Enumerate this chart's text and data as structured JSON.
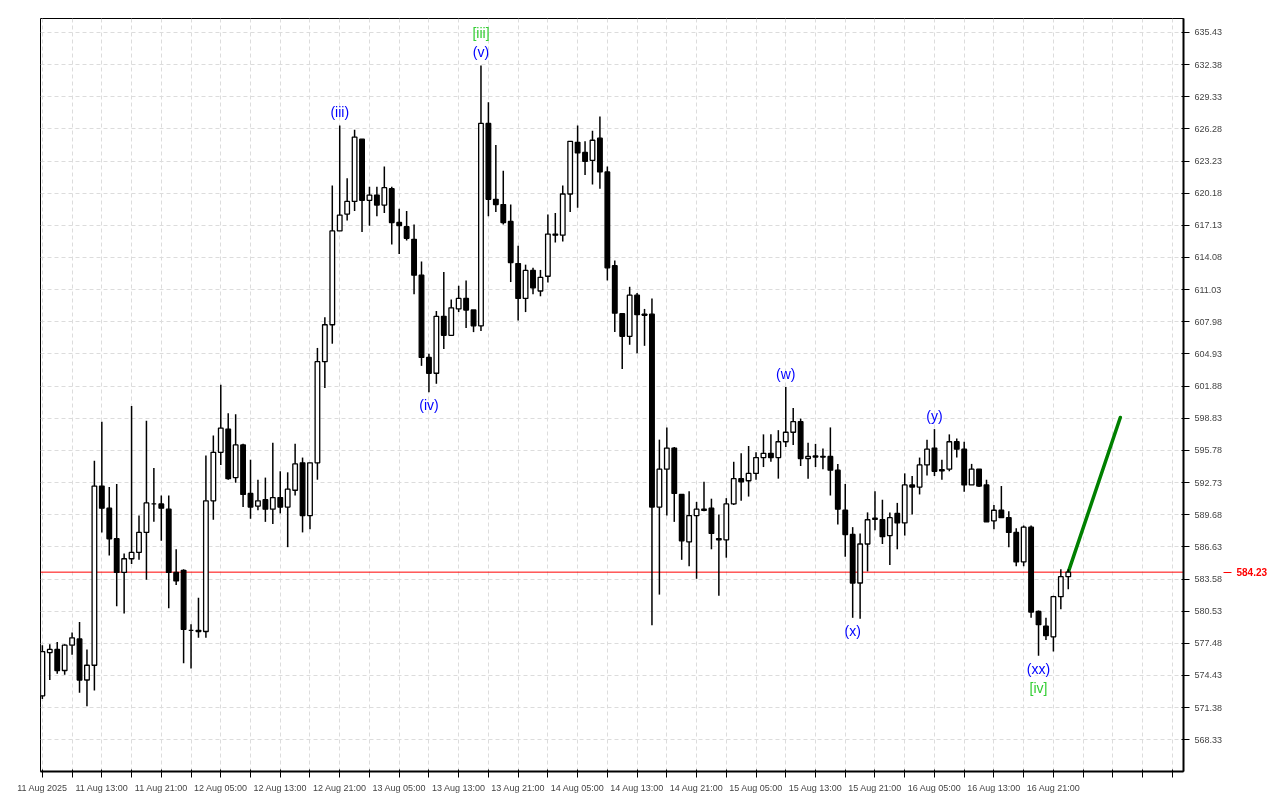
{
  "chart_data": {
    "type": "candlestick",
    "x": [
      "2025-08-11T05:00",
      "2025-08-11T06:00",
      "2025-08-11T07:00",
      "2025-08-11T08:00",
      "2025-08-11T09:00",
      "2025-08-11T10:00",
      "2025-08-11T11:00",
      "2025-08-11T12:00",
      "2025-08-11T13:00",
      "2025-08-11T14:00",
      "2025-08-11T15:00",
      "2025-08-11T16:00",
      "2025-08-11T17:00",
      "2025-08-11T18:00",
      "2025-08-11T19:00",
      "2025-08-11T20:00",
      "2025-08-11T21:00",
      "2025-08-11T22:00",
      "2025-08-11T23:00",
      "2025-08-12T00:00",
      "2025-08-12T01:00",
      "2025-08-12T02:00",
      "2025-08-12T03:00",
      "2025-08-12T04:00",
      "2025-08-12T05:00",
      "2025-08-12T06:00",
      "2025-08-12T07:00",
      "2025-08-12T08:00",
      "2025-08-12T09:00",
      "2025-08-12T10:00",
      "2025-08-12T11:00",
      "2025-08-12T12:00",
      "2025-08-12T13:00",
      "2025-08-12T14:00",
      "2025-08-12T15:00",
      "2025-08-12T16:00",
      "2025-08-12T17:00",
      "2025-08-12T18:00",
      "2025-08-12T19:00",
      "2025-08-12T20:00",
      "2025-08-12T21:00",
      "2025-08-12T22:00",
      "2025-08-12T23:00",
      "2025-08-13T00:00",
      "2025-08-13T01:00",
      "2025-08-13T02:00",
      "2025-08-13T03:00",
      "2025-08-13T04:00",
      "2025-08-13T05:00",
      "2025-08-13T06:00",
      "2025-08-13T07:00",
      "2025-08-13T08:00",
      "2025-08-13T09:00",
      "2025-08-13T10:00",
      "2025-08-13T11:00",
      "2025-08-13T12:00",
      "2025-08-13T13:00",
      "2025-08-13T14:00",
      "2025-08-13T15:00",
      "2025-08-13T16:00",
      "2025-08-13T17:00",
      "2025-08-13T18:00",
      "2025-08-13T19:00",
      "2025-08-13T20:00",
      "2025-08-13T21:00",
      "2025-08-13T22:00",
      "2025-08-13T23:00",
      "2025-08-14T00:00",
      "2025-08-14T01:00",
      "2025-08-14T02:00",
      "2025-08-14T03:00",
      "2025-08-14T04:00",
      "2025-08-14T05:00",
      "2025-08-14T06:00",
      "2025-08-14T07:00",
      "2025-08-14T08:00",
      "2025-08-14T09:00",
      "2025-08-14T10:00",
      "2025-08-14T11:00",
      "2025-08-14T12:00",
      "2025-08-14T13:00",
      "2025-08-14T14:00",
      "2025-08-14T15:00",
      "2025-08-14T16:00",
      "2025-08-14T17:00",
      "2025-08-14T18:00",
      "2025-08-14T19:00",
      "2025-08-14T20:00",
      "2025-08-14T21:00",
      "2025-08-14T22:00",
      "2025-08-14T23:00",
      "2025-08-15T00:00",
      "2025-08-15T01:00",
      "2025-08-15T02:00",
      "2025-08-15T03:00",
      "2025-08-15T04:00",
      "2025-08-15T05:00",
      "2025-08-15T06:00",
      "2025-08-15T07:00",
      "2025-08-15T08:00",
      "2025-08-15T09:00",
      "2025-08-15T10:00",
      "2025-08-15T11:00",
      "2025-08-15T12:00",
      "2025-08-15T13:00",
      "2025-08-15T14:00",
      "2025-08-15T15:00",
      "2025-08-15T16:00",
      "2025-08-15T17:00",
      "2025-08-15T18:00",
      "2025-08-15T19:00",
      "2025-08-15T20:00",
      "2025-08-15T21:00",
      "2025-08-15T22:00",
      "2025-08-15T23:00",
      "2025-08-16T00:00",
      "2025-08-16T01:00",
      "2025-08-16T02:00",
      "2025-08-16T03:00",
      "2025-08-16T04:00",
      "2025-08-16T05:00",
      "2025-08-16T06:00",
      "2025-08-16T07:00",
      "2025-08-16T08:00",
      "2025-08-16T09:00",
      "2025-08-16T10:00",
      "2025-08-16T11:00",
      "2025-08-16T12:00",
      "2025-08-16T13:00",
      "2025-08-16T14:00",
      "2025-08-16T15:00",
      "2025-08-16T16:00",
      "2025-08-16T17:00",
      "2025-08-16T18:00",
      "2025-08-16T19:00",
      "2025-08-16T20:00",
      "2025-08-16T21:00",
      "2025-08-16T22:00",
      "2025-08-16T23:00"
    ],
    "ohlc": [
      [
        572.5,
        577.3,
        572.2,
        576.7
      ],
      [
        576.6,
        577.4,
        574.0,
        576.9
      ],
      [
        576.9,
        577.6,
        574.6,
        574.9
      ],
      [
        574.9,
        577.4,
        574.5,
        577.3
      ],
      [
        577.3,
        578.5,
        576.4,
        578.0
      ],
      [
        577.9,
        579.5,
        572.8,
        574.0
      ],
      [
        574.0,
        576.9,
        571.5,
        575.4
      ],
      [
        575.4,
        594.8,
        573.0,
        592.4
      ],
      [
        592.4,
        598.5,
        588.0,
        590.3
      ],
      [
        590.3,
        592.3,
        585.8,
        587.4
      ],
      [
        587.4,
        592.6,
        581.0,
        584.2
      ],
      [
        584.2,
        586.0,
        580.3,
        585.5
      ],
      [
        585.5,
        600.0,
        585.0,
        586.1
      ],
      [
        586.1,
        589.6,
        585.4,
        588.0
      ],
      [
        588.0,
        598.6,
        583.5,
        590.8
      ],
      [
        590.7,
        594.1,
        589.0,
        590.7
      ],
      [
        590.7,
        591.5,
        587.2,
        590.3
      ],
      [
        590.2,
        591.5,
        580.8,
        584.2
      ],
      [
        584.2,
        586.4,
        583.0,
        583.4
      ],
      [
        584.4,
        584.5,
        575.6,
        578.8
      ],
      [
        578.7,
        579.3,
        575.1,
        578.7
      ],
      [
        578.7,
        581.8,
        578.0,
        578.6
      ],
      [
        578.6,
        595.3,
        578.0,
        591.0
      ],
      [
        591.0,
        597.2,
        589.2,
        595.6
      ],
      [
        595.6,
        602.0,
        594.4,
        597.9
      ],
      [
        597.8,
        599.3,
        593.0,
        593.1
      ],
      [
        593.2,
        599.2,
        592.7,
        596.3
      ],
      [
        596.3,
        596.4,
        590.4,
        591.6
      ],
      [
        591.7,
        594.9,
        589.3,
        590.4
      ],
      [
        590.5,
        593.0,
        590.1,
        591.0
      ],
      [
        591.1,
        593.2,
        589.0,
        590.2
      ],
      [
        590.2,
        596.5,
        588.8,
        591.3
      ],
      [
        591.3,
        593.8,
        589.8,
        590.4
      ],
      [
        590.4,
        593.7,
        586.6,
        592.1
      ],
      [
        592.0,
        596.4,
        591.5,
        594.5
      ],
      [
        594.6,
        595.1,
        588.0,
        589.6
      ],
      [
        589.6,
        594.6,
        588.3,
        594.6
      ],
      [
        594.6,
        605.5,
        593.0,
        604.2
      ],
      [
        604.2,
        608.4,
        601.7,
        607.7
      ],
      [
        607.7,
        620.9,
        605.9,
        616.6
      ],
      [
        616.6,
        626.6,
        616.6,
        618.1
      ],
      [
        618.2,
        621.6,
        617.6,
        619.4
      ],
      [
        619.4,
        626.2,
        618.5,
        625.5
      ],
      [
        625.3,
        625.3,
        616.5,
        619.5
      ],
      [
        619.5,
        620.8,
        617.1,
        620.0
      ],
      [
        620.0,
        620.8,
        618.0,
        619.05
      ],
      [
        619.05,
        622.7,
        618.3,
        620.7
      ],
      [
        620.6,
        620.8,
        615.3,
        617.4
      ],
      [
        617.4,
        618.7,
        614.4,
        617.1
      ],
      [
        617.0,
        618.5,
        615.7,
        615.9
      ],
      [
        615.8,
        617.2,
        610.6,
        612.4
      ],
      [
        612.4,
        613.7,
        603.8,
        604.6
      ],
      [
        604.6,
        604.95,
        601.3,
        603.1
      ],
      [
        603.1,
        609.0,
        602.1,
        608.5
      ],
      [
        608.5,
        612.7,
        605.4,
        606.7
      ],
      [
        606.7,
        610.1,
        606.7,
        609.3
      ],
      [
        609.2,
        611.4,
        608.9,
        610.2
      ],
      [
        610.2,
        611.9,
        607.4,
        609.1
      ],
      [
        609.1,
        609.1,
        607.0,
        607.6
      ],
      [
        607.6,
        632.3,
        607.1,
        626.8
      ],
      [
        626.8,
        628.8,
        618.0,
        619.6
      ],
      [
        619.6,
        624.75,
        618.4,
        619.1
      ],
      [
        619.1,
        622.3,
        617.2,
        617.4
      ],
      [
        617.5,
        619.1,
        611.75,
        613.6
      ],
      [
        613.5,
        615.2,
        608.1,
        610.2
      ],
      [
        610.2,
        613.4,
        608.9,
        612.85
      ],
      [
        612.85,
        613.1,
        610.6,
        611.2
      ],
      [
        610.9,
        612.9,
        610.4,
        612.2
      ],
      [
        612.3,
        618.15,
        611.7,
        616.3
      ],
      [
        616.3,
        618.3,
        615.5,
        616.2
      ],
      [
        616.2,
        620.9,
        615.6,
        620.1
      ],
      [
        620.1,
        625.1,
        618.4,
        625.1
      ],
      [
        625.0,
        626.6,
        618.8,
        624.0
      ],
      [
        624.05,
        625.1,
        621.9,
        623.2
      ],
      [
        623.3,
        626.1,
        621.0,
        625.2
      ],
      [
        625.4,
        627.45,
        620.6,
        622.2
      ],
      [
        622.2,
        622.7,
        611.9,
        613.1
      ],
      [
        613.3,
        613.8,
        607.0,
        608.8
      ],
      [
        608.75,
        608.75,
        603.5,
        606.6
      ],
      [
        606.6,
        611.3,
        605.8,
        610.5
      ],
      [
        610.5,
        610.7,
        605.0,
        608.65
      ],
      [
        608.7,
        609.2,
        605.7,
        608.6
      ],
      [
        608.7,
        610.2,
        579.2,
        590.4
      ],
      [
        590.4,
        596.8,
        582.1,
        594.0
      ],
      [
        594.0,
        597.96,
        589.6,
        596.0
      ],
      [
        596.0,
        596.1,
        589.0,
        591.7
      ],
      [
        591.6,
        591.6,
        585.4,
        587.2
      ],
      [
        587.1,
        591.9,
        584.8,
        589.6
      ],
      [
        589.6,
        590.9,
        583.6,
        590.2
      ],
      [
        590.2,
        592.8,
        590.0,
        590.1
      ],
      [
        590.3,
        591.2,
        586.4,
        587.9
      ],
      [
        587.4,
        589.7,
        582.0,
        587.3
      ],
      [
        587.3,
        591.25,
        585.6,
        590.7
      ],
      [
        590.7,
        594.7,
        590.6,
        593.1
      ],
      [
        593.1,
        595.5,
        591.0,
        592.8
      ],
      [
        592.9,
        596.2,
        591.4,
        593.6
      ],
      [
        593.6,
        595.6,
        593.0,
        595.1
      ],
      [
        595.1,
        597.3,
        594.2,
        595.5
      ],
      [
        595.5,
        597.3,
        594.7,
        595.1
      ],
      [
        595.1,
        597.7,
        593.1,
        596.6
      ],
      [
        596.6,
        601.8,
        596.1,
        597.5
      ],
      [
        597.5,
        599.8,
        596.3,
        598.5
      ],
      [
        598.5,
        598.8,
        594.3,
        595.0
      ],
      [
        595.0,
        596.5,
        593.1,
        595.2
      ],
      [
        595.25,
        596.4,
        594.2,
        595.15
      ],
      [
        595.2,
        595.95,
        594.0,
        595.15
      ],
      [
        595.2,
        597.96,
        591.5,
        593.9
      ],
      [
        593.9,
        594.5,
        588.75,
        590.2
      ],
      [
        590.1,
        592.6,
        585.7,
        587.8
      ],
      [
        587.8,
        588.5,
        579.9,
        583.2
      ],
      [
        583.2,
        587.9,
        579.8,
        586.9
      ],
      [
        586.9,
        589.9,
        584.3,
        589.2
      ],
      [
        589.35,
        591.9,
        588.2,
        589.25
      ],
      [
        589.2,
        591.1,
        586.9,
        587.6
      ],
      [
        587.7,
        589.9,
        584.9,
        589.4
      ],
      [
        589.8,
        590.8,
        586.4,
        588.9
      ],
      [
        588.9,
        593.6,
        587.7,
        592.5
      ],
      [
        592.5,
        593.35,
        589.7,
        592.3
      ],
      [
        592.3,
        595.1,
        591.6,
        594.4
      ],
      [
        594.4,
        596.8,
        593.4,
        595.9
      ],
      [
        596.0,
        597.8,
        593.35,
        593.8
      ],
      [
        593.95,
        594.9,
        593.0,
        593.85
      ],
      [
        594.0,
        597.3,
        593.8,
        596.6
      ],
      [
        596.6,
        596.9,
        595.1,
        595.9
      ],
      [
        595.9,
        596.6,
        591.85,
        592.5
      ],
      [
        592.5,
        594.5,
        592.5,
        594.0
      ],
      [
        594.0,
        594.0,
        592.3,
        592.4
      ],
      [
        592.5,
        593.0,
        589.0,
        589.0
      ],
      [
        589.1,
        590.6,
        588.3,
        590.1
      ],
      [
        590.1,
        592.4,
        589.4,
        589.4
      ],
      [
        589.4,
        590.0,
        586.6,
        588.0
      ],
      [
        588.0,
        588.4,
        584.8,
        585.2
      ],
      [
        585.2,
        588.65,
        584.8,
        588.5
      ],
      [
        588.5,
        588.65,
        579.9,
        580.45
      ],
      [
        580.5,
        580.6,
        576.3,
        579.25
      ],
      [
        579.1,
        579.9,
        577.8,
        578.2
      ],
      [
        578.1,
        582.0,
        576.7,
        581.9
      ],
      [
        581.9,
        584.5,
        580.7,
        583.8
      ],
      [
        583.8,
        584.5,
        582.6,
        584.23
      ]
    ],
    "series": [
      {
        "type": "line",
        "color": "#008000",
        "x": [
          "2025-08-16T23:00",
          "2025-08-17T06:00"
        ],
        "values": [
          584.23,
          598.9
        ]
      }
    ],
    "xlim": [
      "2025-08-11T04:45",
      "2025-08-17T14:30"
    ],
    "ylim": [
      565.32,
      636.75
    ],
    "xticks": [
      {
        "value": "2025-08-11T05:00",
        "label": "11 Aug 2025"
      },
      {
        "value": "2025-08-11T09:00",
        "label": null
      },
      {
        "value": "2025-08-11T13:00",
        "label": "11 Aug 13:00"
      },
      {
        "value": "2025-08-11T17:00",
        "label": null
      },
      {
        "value": "2025-08-11T21:00",
        "label": "11 Aug 21:00"
      },
      {
        "value": "2025-08-12T01:00",
        "label": null
      },
      {
        "value": "2025-08-12T05:00",
        "label": "12 Aug 05:00"
      },
      {
        "value": "2025-08-12T09:00",
        "label": null
      },
      {
        "value": "2025-08-12T13:00",
        "label": "12 Aug 13:00"
      },
      {
        "value": "2025-08-12T17:00",
        "label": null
      },
      {
        "value": "2025-08-12T21:00",
        "label": "12 Aug 21:00"
      },
      {
        "value": "2025-08-13T01:00",
        "label": null
      },
      {
        "value": "2025-08-13T05:00",
        "label": "13 Aug 05:00"
      },
      {
        "value": "2025-08-13T09:00",
        "label": null
      },
      {
        "value": "2025-08-13T13:00",
        "label": "13 Aug 13:00"
      },
      {
        "value": "2025-08-13T17:00",
        "label": null
      },
      {
        "value": "2025-08-13T21:00",
        "label": "13 Aug 21:00"
      },
      {
        "value": "2025-08-14T01:00",
        "label": null
      },
      {
        "value": "2025-08-14T05:00",
        "label": "14 Aug 05:00"
      },
      {
        "value": "2025-08-14T09:00",
        "label": null
      },
      {
        "value": "2025-08-14T13:00",
        "label": "14 Aug 13:00"
      },
      {
        "value": "2025-08-14T17:00",
        "label": null
      },
      {
        "value": "2025-08-14T21:00",
        "label": "14 Aug 21:00"
      },
      {
        "value": "2025-08-15T01:00",
        "label": null
      },
      {
        "value": "2025-08-15T05:00",
        "label": "15 Aug 05:00"
      },
      {
        "value": "2025-08-15T09:00",
        "label": null
      },
      {
        "value": "2025-08-15T13:00",
        "label": "15 Aug 13:00"
      },
      {
        "value": "2025-08-15T17:00",
        "label": null
      },
      {
        "value": "2025-08-15T21:00",
        "label": "15 Aug 21:00"
      },
      {
        "value": "2025-08-16T01:00",
        "label": null
      },
      {
        "value": "2025-08-16T05:00",
        "label": "16 Aug 05:00"
      },
      {
        "value": "2025-08-16T09:00",
        "label": null
      },
      {
        "value": "2025-08-16T13:00",
        "label": "16 Aug 13:00"
      },
      {
        "value": "2025-08-16T17:00",
        "label": null
      },
      {
        "value": "2025-08-16T21:00",
        "label": "16 Aug 21:00"
      },
      {
        "value": "2025-08-17T01:00",
        "label": null
      },
      {
        "value": "2025-08-17T05:00",
        "label": null
      },
      {
        "value": "2025-08-17T09:00",
        "label": null
      },
      {
        "value": "2025-08-17T13:00",
        "label": null
      }
    ],
    "yticks": [
      568.33,
      571.38,
      574.43,
      577.48,
      580.53,
      583.58,
      586.63,
      589.68,
      592.73,
      595.78,
      598.83,
      601.88,
      604.93,
      607.98,
      611.03,
      614.08,
      617.13,
      620.18,
      623.23,
      626.28,
      629.33,
      632.38,
      635.43
    ],
    "grid": true,
    "ref_lines": [
      {
        "axis": "y",
        "value": 584.23,
        "label": "584.23",
        "color": "#ff0000"
      }
    ],
    "annotations": [
      {
        "text": "(v)",
        "x": "2025-08-13T16:00",
        "y": 632.3
      },
      {
        "text": "[iii]",
        "x": "2025-08-13T16:00",
        "y": 632.3
      },
      {
        "text": "(iii)",
        "x": "2025-08-12T21:00",
        "y": 626.6
      },
      {
        "text": "(iv)",
        "x": "2025-08-13T09:00",
        "y": 601.3
      },
      {
        "text": "(w)",
        "x": "2025-08-15T09:00",
        "y": 601.8
      },
      {
        "text": "(x)",
        "x": "2025-08-15T18:00",
        "y": 579.9
      },
      {
        "text": "(y)",
        "x": "2025-08-16T05:00",
        "y": 597.8
      },
      {
        "text": "(xx)",
        "x": "2025-08-16T19:00",
        "y": 576.3
      },
      {
        "text": "[iv]",
        "x": "2025-08-16T19:00",
        "y": 576.3
      }
    ]
  }
}
